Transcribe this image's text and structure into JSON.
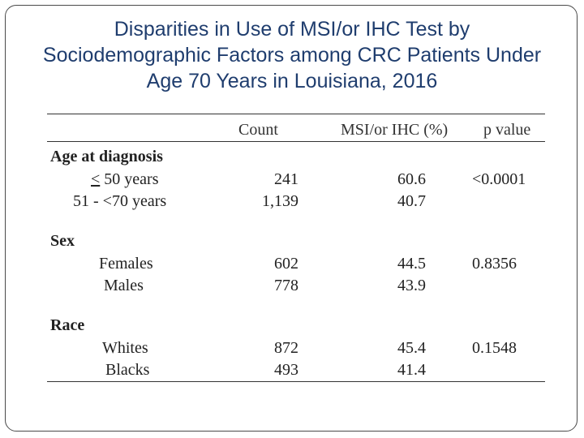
{
  "title": {
    "line1": "Disparities in Use of MSI/or IHC Test by",
    "line2": "Sociodemographic Factors among CRC Patients Under",
    "line3": "Age 70  Years in Louisiana, 2016"
  },
  "table": {
    "headers": {
      "count": "Count",
      "msi": "MSI/or IHC (%)",
      "p": "p value"
    },
    "sections": {
      "age": {
        "title": "Age at diagnosis",
        "r1": {
          "sym": "<",
          "label": " 50 years",
          "count": "241",
          "pct": "60.6",
          "p": "<0.0001"
        },
        "r2": {
          "label": "51 - <70 years",
          "count": "1,139",
          "pct": "40.7"
        }
      },
      "sex": {
        "title": "Sex",
        "r1": {
          "label": "Females",
          "count": "602",
          "pct": "44.5",
          "p": "0.8356"
        },
        "r2": {
          "label": "Males",
          "count": "778",
          "pct": "43.9"
        }
      },
      "race": {
        "title": "Race",
        "r1": {
          "label": "Whites",
          "count": "872",
          "pct": "45.4",
          "p": "0.1548"
        },
        "r2": {
          "label": "Blacks",
          "count": "493",
          "pct": "41.4"
        }
      }
    }
  }
}
